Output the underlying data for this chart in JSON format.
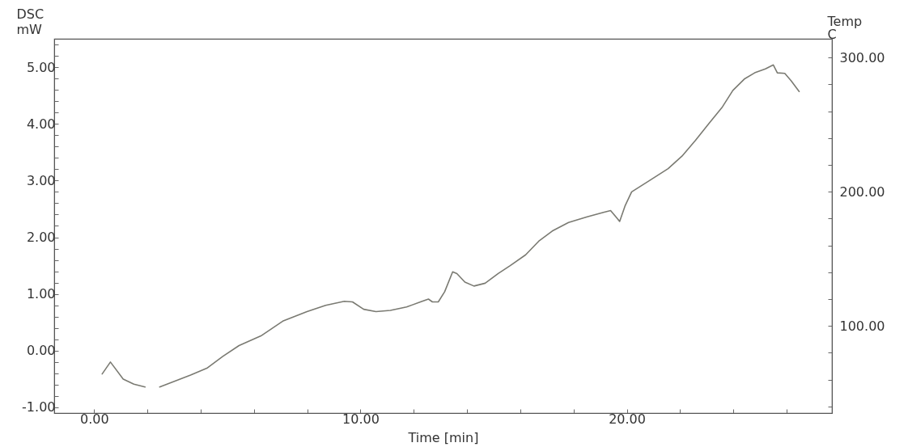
{
  "chart_data": {
    "type": "line",
    "xlabel": "Time [min]",
    "ylabel": "DSC\nmW",
    "y2label": "Temp\nC",
    "color": "#7a7a72",
    "grid": false,
    "x": [
      0.3,
      0.61,
      1.09,
      1.49,
      1.91,
      2.2,
      2.46,
      3.62,
      4.23,
      4.83,
      5.44,
      6.26,
      7.08,
      7.99,
      8.69,
      9.39,
      9.7,
      10.12,
      10.58,
      11.12,
      11.73,
      12.25,
      12.55,
      12.7,
      12.92,
      13.16,
      13.46,
      13.62,
      13.92,
      14.26,
      14.68,
      15.17,
      15.62,
      16.2,
      16.69,
      17.2,
      17.81,
      18.51,
      19.12,
      19.39,
      19.73,
      19.93,
      20.18,
      20.85,
      21.55,
      22.07,
      22.58,
      23.07,
      23.59,
      23.98,
      24.41,
      24.8,
      25.2,
      25.5,
      25.65,
      25.93,
      26.17,
      26.47
    ],
    "values": [
      -0.41,
      -0.2,
      -0.5,
      -0.59,
      -0.64,
      null,
      -0.64,
      -0.43,
      -0.31,
      -0.1,
      0.09,
      0.26,
      0.52,
      0.69,
      0.8,
      0.87,
      0.86,
      0.73,
      0.69,
      0.71,
      0.77,
      0.86,
      0.91,
      0.86,
      0.86,
      1.04,
      1.39,
      1.36,
      1.21,
      1.14,
      1.19,
      1.36,
      1.5,
      1.69,
      1.93,
      2.11,
      2.26,
      2.36,
      2.44,
      2.47,
      2.28,
      2.55,
      2.8,
      3.0,
      3.21,
      3.43,
      3.71,
      4.0,
      4.3,
      4.59,
      4.79,
      4.9,
      4.97,
      5.04,
      4.9,
      4.89,
      4.76,
      4.57
    ],
    "xlim": [
      -1.5,
      27.7
    ],
    "xticks": [
      {
        "value": 0,
        "label": "0.00"
      },
      {
        "value": 2,
        "label": null
      },
      {
        "value": 4,
        "label": null
      },
      {
        "value": 6,
        "label": null
      },
      {
        "value": 8,
        "label": null
      },
      {
        "value": 10,
        "label": "10.00"
      },
      {
        "value": 12,
        "label": null
      },
      {
        "value": 14,
        "label": null
      },
      {
        "value": 16,
        "label": null
      },
      {
        "value": 18,
        "label": null
      },
      {
        "value": 20,
        "label": "20.00"
      },
      {
        "value": 22,
        "label": null
      },
      {
        "value": 24,
        "label": null
      },
      {
        "value": 26,
        "label": null
      }
    ],
    "ylim": [
      -1.1,
      5.5
    ],
    "yticks": [
      {
        "value": -1,
        "label": "-1.00"
      },
      {
        "value": -0.8,
        "label": null
      },
      {
        "value": -0.6,
        "label": null
      },
      {
        "value": -0.4,
        "label": null
      },
      {
        "value": -0.2,
        "label": null
      },
      {
        "value": 0,
        "label": "0.00"
      },
      {
        "value": 0.2,
        "label": null
      },
      {
        "value": 0.4,
        "label": null
      },
      {
        "value": 0.6,
        "label": null
      },
      {
        "value": 0.8,
        "label": null
      },
      {
        "value": 1,
        "label": "1.00"
      },
      {
        "value": 1.2,
        "label": null
      },
      {
        "value": 1.4,
        "label": null
      },
      {
        "value": 1.6,
        "label": null
      },
      {
        "value": 1.8,
        "label": null
      },
      {
        "value": 2,
        "label": "2.00"
      },
      {
        "value": 2.2,
        "label": null
      },
      {
        "value": 2.4,
        "label": null
      },
      {
        "value": 2.6,
        "label": null
      },
      {
        "value": 2.8,
        "label": null
      },
      {
        "value": 3,
        "label": "3.00"
      },
      {
        "value": 3.2,
        "label": null
      },
      {
        "value": 3.4,
        "label": null
      },
      {
        "value": 3.6,
        "label": null
      },
      {
        "value": 3.8,
        "label": null
      },
      {
        "value": 4,
        "label": "4.00"
      },
      {
        "value": 4.2,
        "label": null
      },
      {
        "value": 4.4,
        "label": null
      },
      {
        "value": 4.6,
        "label": null
      },
      {
        "value": 4.8,
        "label": null
      },
      {
        "value": 5,
        "label": "5.00"
      },
      {
        "value": 5.2,
        "label": null
      },
      {
        "value": 5.4,
        "label": null
      }
    ],
    "y2lim": [
      35,
      314
    ],
    "y2ticks": [
      {
        "value": 40,
        "label": null
      },
      {
        "value": 60,
        "label": null
      },
      {
        "value": 80,
        "label": null
      },
      {
        "value": 100,
        "label": "100.00"
      },
      {
        "value": 120,
        "label": null
      },
      {
        "value": 140,
        "label": null
      },
      {
        "value": 160,
        "label": null
      },
      {
        "value": 180,
        "label": null
      },
      {
        "value": 200,
        "label": "200.00"
      },
      {
        "value": 220,
        "label": null
      },
      {
        "value": 240,
        "label": null
      },
      {
        "value": 260,
        "label": null
      },
      {
        "value": 280,
        "label": null
      },
      {
        "value": 300,
        "label": "300.00"
      }
    ]
  }
}
